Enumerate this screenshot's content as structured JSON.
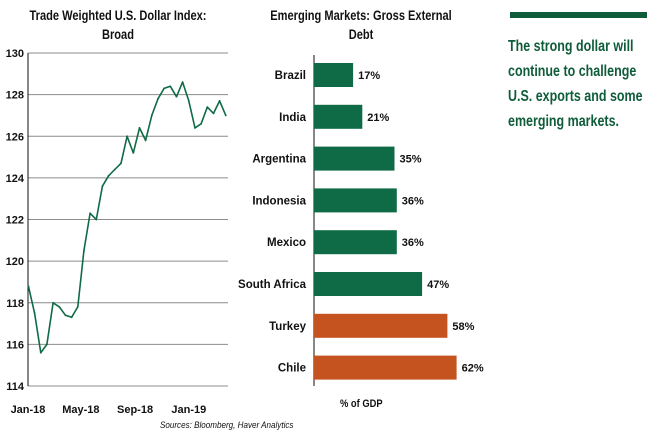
{
  "colors": {
    "line": "#0f6b45",
    "bar_green": "#0f6b45",
    "bar_orange": "#c4531f",
    "accent": "#0f5c3a",
    "grid": "#8c8c8c"
  },
  "callout_text": "The strong dollar will continue to challenge U.S. exports and some emerging markets.",
  "source": "Sources: Bloomberg, Haver Analytics",
  "chart_data": [
    {
      "type": "line",
      "title": "Trade Weighted U.S. Dollar Index: Broad",
      "ylim": [
        114,
        130
      ],
      "yticks": [
        114,
        116,
        118,
        120,
        122,
        124,
        126,
        128,
        130
      ],
      "xtick_labels": [
        "Jan-18",
        "May-18",
        "Sep-18",
        "Jan-19"
      ],
      "grid": "horizontal",
      "x": [
        "2018-01-02",
        "2018-01-16",
        "2018-01-30",
        "2018-02-13",
        "2018-02-27",
        "2018-03-13",
        "2018-03-27",
        "2018-04-10",
        "2018-04-24",
        "2018-05-08",
        "2018-05-22",
        "2018-06-05",
        "2018-06-19",
        "2018-07-03",
        "2018-07-17",
        "2018-07-31",
        "2018-08-14",
        "2018-08-28",
        "2018-09-11",
        "2018-09-25",
        "2018-10-09",
        "2018-10-23",
        "2018-11-06",
        "2018-11-20",
        "2018-12-04",
        "2018-12-18",
        "2019-01-01",
        "2019-01-15",
        "2019-01-29",
        "2019-02-12",
        "2019-02-26",
        "2019-03-12",
        "2019-03-26"
      ],
      "y": [
        118.8,
        117.5,
        115.6,
        116.0,
        118.0,
        117.8,
        117.4,
        117.3,
        117.8,
        120.5,
        122.3,
        122.0,
        123.6,
        124.1,
        124.4,
        124.7,
        126.0,
        125.2,
        126.4,
        125.8,
        127.0,
        127.8,
        128.3,
        128.4,
        127.9,
        128.6,
        127.7,
        126.4,
        126.6,
        127.4,
        127.1,
        127.7,
        127.0
      ]
    },
    {
      "type": "bar",
      "orientation": "horizontal",
      "title": "Emerging Markets: Gross External Debt",
      "xlabel": "% of GDP",
      "categories": [
        "Brazil",
        "India",
        "Argentina",
        "Indonesia",
        "Mexico",
        "South Africa",
        "Turkey",
        "Chile"
      ],
      "values": [
        17,
        21,
        35,
        36,
        36,
        47,
        58,
        62
      ],
      "value_labels": [
        "17%",
        "21%",
        "35%",
        "36%",
        "36%",
        "47%",
        "58%",
        "62%"
      ],
      "highlight": [
        "green",
        "green",
        "green",
        "green",
        "green",
        "green",
        "orange",
        "orange"
      ]
    }
  ]
}
